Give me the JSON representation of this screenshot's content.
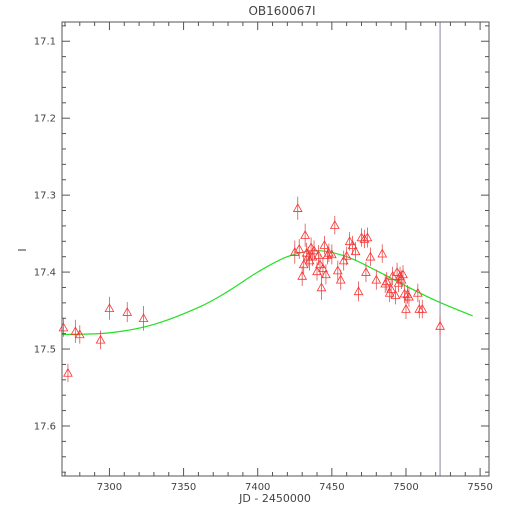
{
  "chart_data": {
    "type": "scatter",
    "title": "OB160067I",
    "xlabel": "JD - 2450000",
    "ylabel": "I",
    "xlim": [
      7268,
      7556
    ],
    "ylim": [
      17.665,
      17.075
    ],
    "y_inverted": true,
    "x_ticks": [
      7300,
      7350,
      7400,
      7450,
      7500,
      7550
    ],
    "y_ticks": [
      17.1,
      17.2,
      17.3,
      17.4,
      17.5,
      17.6
    ],
    "grid": false,
    "legend": "none",
    "colors": {
      "points": "#ff3030",
      "model": "#22e022",
      "marker_line": "#8888aa"
    },
    "marker_line_x": 7523,
    "model_curve": {
      "x": [
        7268,
        7300,
        7330,
        7360,
        7380,
        7400,
        7420,
        7440,
        7460,
        7480,
        7500,
        7520,
        7545
      ],
      "y": [
        17.481,
        17.479,
        17.468,
        17.446,
        17.425,
        17.4,
        17.38,
        17.372,
        17.38,
        17.398,
        17.418,
        17.437,
        17.457
      ]
    },
    "series": [
      {
        "x": [
          7269,
          7272,
          7277,
          7280,
          7294,
          7300,
          7312,
          7323,
          7425,
          7427,
          7428,
          7430,
          7431,
          7432,
          7433,
          7434,
          7435,
          7436,
          7437,
          7438,
          7440,
          7441,
          7442,
          7443,
          7444,
          7445,
          7446,
          7447,
          7448,
          7450,
          7452,
          7454,
          7456,
          7458,
          7460,
          7462,
          7464,
          7466,
          7468,
          7470,
          7472,
          7473,
          7474,
          7476,
          7480,
          7484,
          7486,
          7487,
          7489,
          7490,
          7491,
          7493,
          7494,
          7495,
          7496,
          7497,
          7498,
          7499,
          7500,
          7501,
          7502,
          7508,
          7509,
          7511,
          7523
        ],
        "y": [
          17.472,
          17.531,
          17.477,
          17.481,
          17.488,
          17.447,
          17.452,
          17.46,
          17.374,
          17.317,
          17.37,
          17.405,
          17.39,
          17.352,
          17.375,
          17.38,
          17.385,
          17.368,
          17.38,
          17.372,
          17.399,
          17.378,
          17.39,
          17.42,
          17.395,
          17.365,
          17.403,
          17.378,
          17.375,
          17.377,
          17.339,
          17.398,
          17.41,
          17.385,
          17.379,
          17.36,
          17.365,
          17.373,
          17.425,
          17.355,
          17.357,
          17.4,
          17.355,
          17.38,
          17.41,
          17.376,
          17.415,
          17.412,
          17.427,
          17.422,
          17.405,
          17.43,
          17.4,
          17.414,
          17.405,
          17.41,
          17.403,
          17.428,
          17.448,
          17.429,
          17.432,
          17.427,
          17.448,
          17.448,
          17.47
        ],
        "err": [
          0.012,
          0.012,
          0.015,
          0.012,
          0.012,
          0.015,
          0.013,
          0.016,
          0.015,
          0.015,
          0.013,
          0.013,
          0.012,
          0.015,
          0.013,
          0.013,
          0.013,
          0.013,
          0.012,
          0.013,
          0.012,
          0.013,
          0.013,
          0.016,
          0.012,
          0.012,
          0.013,
          0.012,
          0.012,
          0.013,
          0.012,
          0.013,
          0.013,
          0.013,
          0.012,
          0.012,
          0.012,
          0.012,
          0.013,
          0.012,
          0.012,
          0.013,
          0.013,
          0.012,
          0.013,
          0.012,
          0.012,
          0.012,
          0.012,
          0.012,
          0.012,
          0.012,
          0.012,
          0.012,
          0.012,
          0.012,
          0.012,
          0.012,
          0.013,
          0.012,
          0.013,
          0.012,
          0.012,
          0.012,
          0.012
        ]
      }
    ]
  }
}
